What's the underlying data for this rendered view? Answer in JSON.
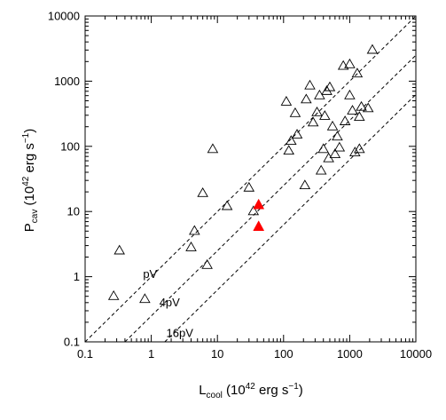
{
  "chart_data": {
    "type": "scatter",
    "title": "",
    "xlabel": {
      "main": "L",
      "sub": "cool",
      "rest_before_sup": " (10",
      "sup": "42",
      "rest_after_sup": " erg s",
      "sup2": "−1",
      "close": ")"
    },
    "ylabel": {
      "main": "P",
      "sub": "cav",
      "rest_before_sup": " (10",
      "sup": "42",
      "rest_after_sup": " erg s",
      "sup2": "−1",
      "close": ")"
    },
    "x_scale": "log",
    "y_scale": "log",
    "xlim": [
      0.1,
      10000
    ],
    "ylim": [
      0.1,
      10000
    ],
    "x_ticks": [
      0.1,
      1,
      10,
      100,
      1000,
      10000
    ],
    "x_tick_labels": [
      "0.1",
      "1",
      "10",
      "100",
      "1000",
      "10000"
    ],
    "y_ticks": [
      0.1,
      1,
      10,
      100,
      1000,
      10000
    ],
    "y_tick_labels": [
      "0.1",
      "1",
      "10",
      "100",
      "1000",
      "10000"
    ],
    "grid": false,
    "reference_lines": [
      {
        "label": "pV",
        "factor": 1
      },
      {
        "label": "4pV",
        "factor": 4
      },
      {
        "label": "16pV",
        "factor": 16
      }
    ],
    "series": [
      {
        "marker": "open-triangle",
        "color": "#000000",
        "points": [
          [
            0.27,
            0.5
          ],
          [
            0.33,
            2.5
          ],
          [
            0.8,
            0.45
          ],
          [
            4.0,
            2.8
          ],
          [
            4.5,
            5.0
          ],
          [
            6.0,
            19
          ],
          [
            7.0,
            1.5
          ],
          [
            8.5,
            90
          ],
          [
            14,
            12
          ],
          [
            30,
            23
          ],
          [
            35,
            10
          ],
          [
            110,
            480
          ],
          [
            120,
            85
          ],
          [
            130,
            120
          ],
          [
            150,
            320
          ],
          [
            160,
            150
          ],
          [
            210,
            25
          ],
          [
            220,
            520
          ],
          [
            250,
            850
          ],
          [
            280,
            230
          ],
          [
            320,
            330
          ],
          [
            350,
            600
          ],
          [
            370,
            42
          ],
          [
            400,
            90
          ],
          [
            420,
            290
          ],
          [
            450,
            700
          ],
          [
            480,
            65
          ],
          [
            500,
            800
          ],
          [
            550,
            200
          ],
          [
            600,
            75
          ],
          [
            650,
            140
          ],
          [
            700,
            95
          ],
          [
            800,
            1700
          ],
          [
            850,
            240
          ],
          [
            1000,
            1800
          ],
          [
            1000,
            600
          ],
          [
            1100,
            350
          ],
          [
            1200,
            80
          ],
          [
            1300,
            1300
          ],
          [
            1400,
            90
          ],
          [
            1400,
            280
          ],
          [
            1500,
            400
          ],
          [
            1900,
            380
          ],
          [
            2200,
            3000
          ]
        ]
      },
      {
        "marker": "filled-triangle",
        "color": "#ff0000",
        "points": [
          [
            42,
            12.5
          ],
          [
            42,
            5.8
          ]
        ]
      }
    ]
  }
}
